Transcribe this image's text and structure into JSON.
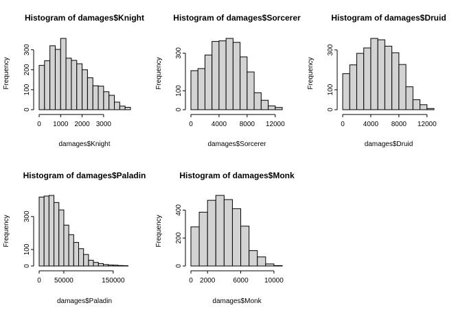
{
  "chart_data": [
    {
      "type": "bar",
      "title": "Histogram of damages$Knight",
      "xlabel": "damages$Knight",
      "ylabel": "Frequency",
      "bin_start": 0,
      "bin_width": 250,
      "values": [
        222,
        245,
        320,
        302,
        357,
        258,
        247,
        230,
        200,
        160,
        120,
        118,
        90,
        72,
        38,
        18,
        12
      ],
      "xlim": [
        0,
        4250
      ],
      "ylim": [
        0,
        357
      ],
      "xticks": [
        0,
        1000,
        2000,
        3000
      ],
      "xtick_labels": [
        "0",
        "1000",
        "2000",
        "3000"
      ],
      "yticks": [
        0,
        100,
        200,
        300
      ],
      "ytick_labels": [
        "0",
        "100",
        "200",
        "300"
      ]
    },
    {
      "type": "bar",
      "title": "Histogram of damages$Sorcerer",
      "xlabel": "damages$Sorcerer",
      "ylabel": "Frequency",
      "bin_start": 0,
      "bin_width": 1000,
      "values": [
        207,
        218,
        290,
        362,
        365,
        378,
        357,
        280,
        200,
        90,
        50,
        20,
        12
      ],
      "xlim": [
        0,
        13000
      ],
      "ylim": [
        0,
        378
      ],
      "xticks": [
        0,
        4000,
        8000,
        12000
      ],
      "xtick_labels": [
        "0",
        "4000",
        "8000",
        "12000"
      ],
      "yticks": [
        0,
        100,
        300
      ],
      "ytick_labels": [
        "0",
        "100",
        "300"
      ]
    },
    {
      "type": "bar",
      "title": "Histogram of damages$Druid",
      "xlabel": "damages$Druid",
      "ylabel": "Frequency",
      "bin_start": 0,
      "bin_width": 1000,
      "values": [
        181,
        225,
        283,
        310,
        358,
        351,
        319,
        286,
        227,
        115,
        50,
        25,
        6
      ],
      "xlim": [
        0,
        13000
      ],
      "ylim": [
        0,
        358
      ],
      "xticks": [
        0,
        4000,
        8000,
        12000
      ],
      "xtick_labels": [
        "0",
        "4000",
        "8000",
        "12000"
      ],
      "yticks": [
        0,
        100,
        300
      ],
      "ytick_labels": [
        "0",
        "100",
        "300"
      ]
    },
    {
      "type": "bar",
      "title": "Histogram of damages$Paladin",
      "xlabel": "damages$Paladin",
      "ylabel": "Frequency",
      "bin_start": 0,
      "bin_width": 10000,
      "values": [
        418,
        424,
        428,
        385,
        340,
        248,
        190,
        143,
        105,
        70,
        35,
        22,
        15,
        9,
        6,
        5,
        3,
        2
      ],
      "xlim": [
        0,
        185000
      ],
      "ylim": [
        0,
        428
      ],
      "xticks": [
        0,
        50000,
        150000
      ],
      "xtick_labels": [
        "0",
        "50000",
        "150000"
      ],
      "yticks": [
        0,
        100,
        300
      ],
      "ytick_labels": [
        "0",
        "100",
        "300"
      ]
    },
    {
      "type": "bar",
      "title": "Histogram of damages$Monk",
      "xlabel": "damages$Monk",
      "ylabel": "Frequency",
      "bin_start": 0,
      "bin_width": 1000,
      "values": [
        280,
        385,
        470,
        505,
        475,
        410,
        285,
        110,
        65,
        15,
        3
      ],
      "xlim": [
        0,
        11000
      ],
      "ylim": [
        0,
        505
      ],
      "xticks": [
        0,
        2000,
        6000,
        10000
      ],
      "xtick_labels": [
        "0",
        "2000",
        "6000",
        "10000"
      ],
      "yticks": [
        0,
        200,
        400
      ],
      "ytick_labels": [
        "0",
        "200",
        "400"
      ]
    }
  ]
}
